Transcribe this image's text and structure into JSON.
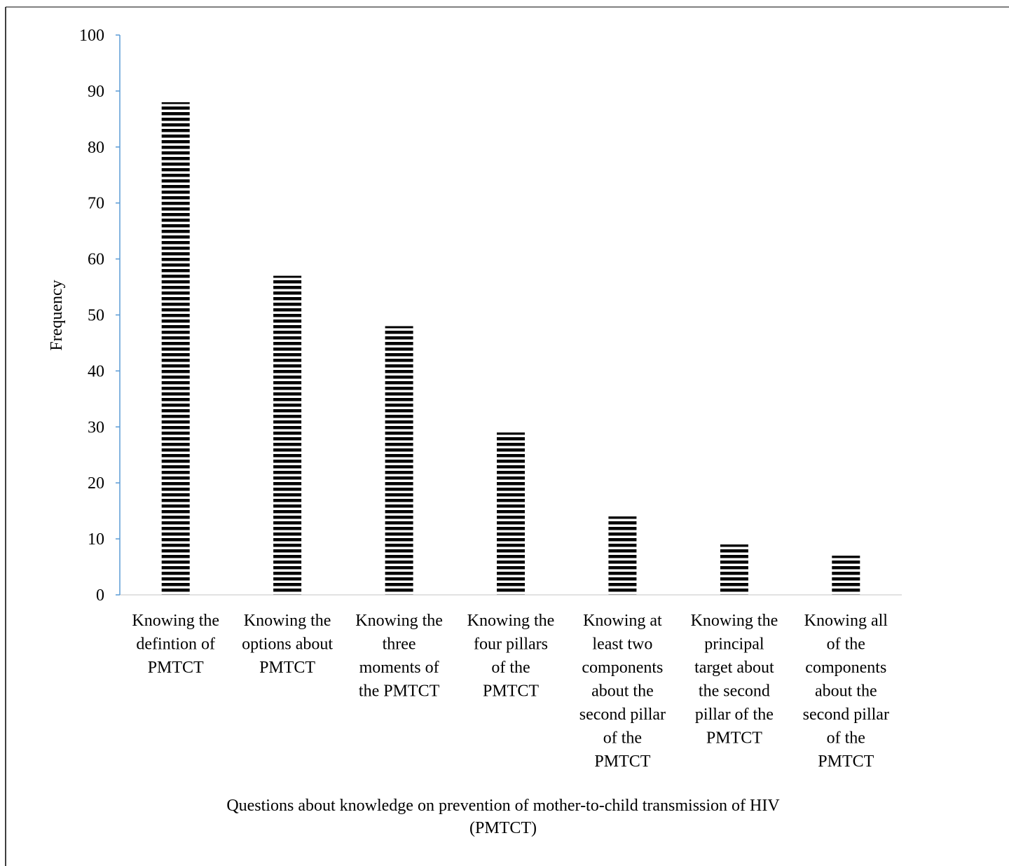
{
  "chart_data": {
    "type": "bar",
    "categories": [
      [
        "Knowing the",
        "defintion of",
        "PMTCT"
      ],
      [
        "Knowing the",
        "options about",
        "PMTCT"
      ],
      [
        "Knowing the",
        "three",
        "moments of",
        "the PMTCT"
      ],
      [
        "Knowing the",
        "four pillars",
        "of the",
        "PMTCT"
      ],
      [
        "Knowing at",
        "least two",
        "components",
        "about the",
        "second pillar",
        "of the",
        "PMTCT"
      ],
      [
        "Knowing the",
        "principal",
        "target about",
        "the second",
        "pillar of the",
        "PMTCT"
      ],
      [
        "Knowing all",
        "of the",
        "components",
        "about the",
        "second pillar",
        "of the",
        "PMTCT"
      ]
    ],
    "values": [
      88,
      57,
      48,
      29,
      14,
      9,
      7
    ],
    "title": "",
    "xlabel": [
      "Questions about knowledge on prevention of mother-to-child transmission of HIV",
      "(PMTCT)"
    ],
    "ylabel": "Frequency",
    "ylim": [
      0,
      100
    ],
    "yticks": [
      0,
      10,
      20,
      30,
      40,
      50,
      60,
      70,
      80,
      90,
      100
    ],
    "grid": false,
    "legend": "none",
    "bar_fill": "horizontal-stripes",
    "colors": {
      "bar": "#000000",
      "axis": "#5b9bd5",
      "baseline": "#d9d9d9",
      "frame": "#000000"
    }
  }
}
